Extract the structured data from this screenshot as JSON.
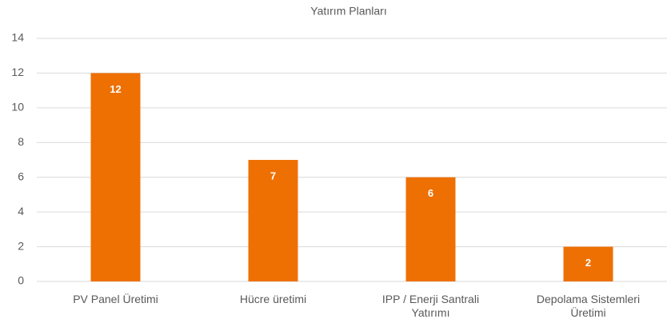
{
  "chart_data": {
    "type": "bar",
    "title": "Yatırım Planları",
    "categories": [
      "PV Panel Üretimi",
      "Hücre üretimi",
      "IPP / Enerji Santrali Yatırımı",
      "Depolama Sistemleri Üretimi"
    ],
    "values": [
      12,
      7,
      6,
      2
    ],
    "color": "#ee7003",
    "ylim": [
      0,
      14
    ],
    "yticks": [
      0,
      2,
      4,
      6,
      8,
      10,
      12,
      14
    ],
    "grid": true
  }
}
